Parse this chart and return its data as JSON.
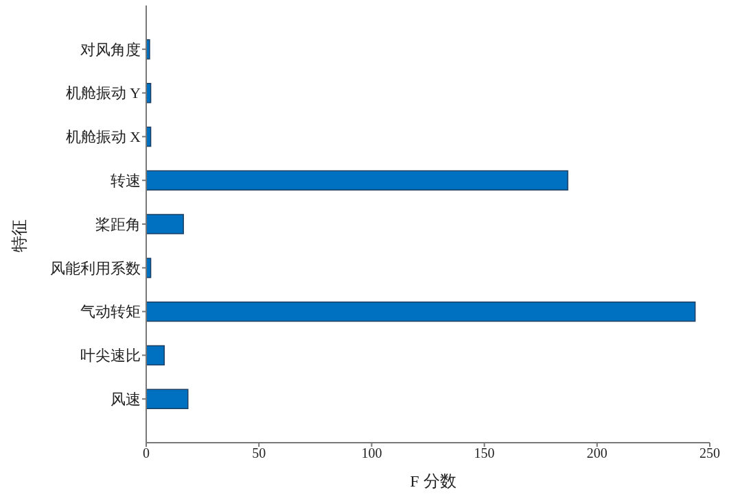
{
  "chart_data": {
    "type": "bar",
    "orientation": "horizontal",
    "xlabel": "F 分数",
    "ylabel": "特征",
    "categories": [
      "对风角度",
      "机舱振动 Y",
      "机舱振动 X",
      "转速",
      "桨距角",
      "风能利用系数",
      "气动转矩",
      "叶尖速比",
      "风速"
    ],
    "values": [
      1.5,
      2,
      2,
      187,
      16.5,
      2,
      243.5,
      8,
      18.5
    ],
    "color": "#0070c0",
    "xlim": [
      0,
      250
    ],
    "xticks": [
      0,
      50,
      100,
      150,
      200,
      250
    ],
    "grid": false,
    "legend": false
  }
}
